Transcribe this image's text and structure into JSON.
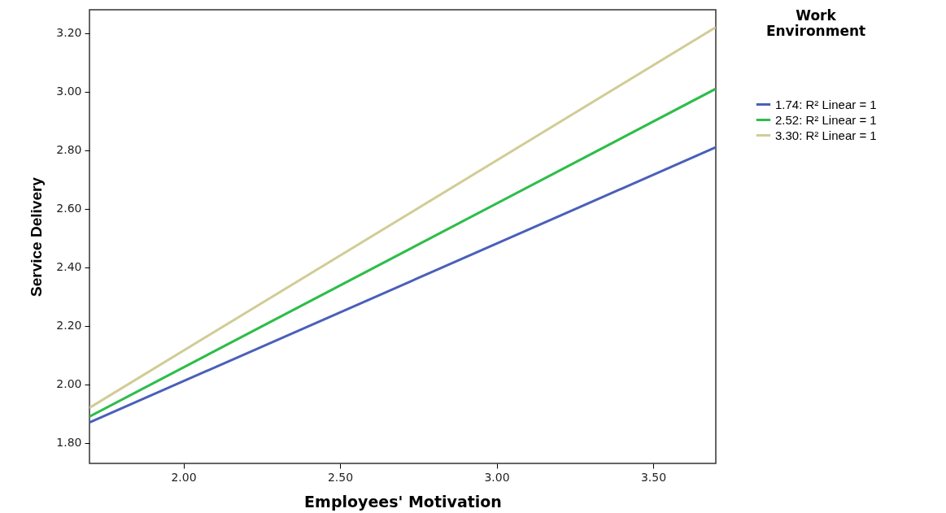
{
  "chart_data": {
    "type": "line",
    "xlabel": "Employees' Motivation",
    "ylabel": "Service Delivery",
    "legend_title": "Work Environment",
    "legend": "right",
    "grid": false,
    "xlim": [
      1.7,
      3.7
    ],
    "xticks": [
      {
        "value": 2,
        "label": "2.00"
      },
      {
        "value": 2.5,
        "label": "2.50"
      },
      {
        "value": 3,
        "label": "3.00"
      },
      {
        "value": 3.5,
        "label": "3.50"
      }
    ],
    "ylim": [
      1.73,
      3.28
    ],
    "yticks": [
      {
        "value": 1.8,
        "label": "1.80"
      },
      {
        "value": 2,
        "label": "2.00"
      },
      {
        "value": 2.2,
        "label": "2.20"
      },
      {
        "value": 2.4,
        "label": "2.40"
      },
      {
        "value": 2.6,
        "label": "2.60"
      },
      {
        "value": 2.8,
        "label": "2.80"
      },
      {
        "value": 3,
        "label": "3.00"
      },
      {
        "value": 3.2,
        "label": "3.20"
      }
    ],
    "x": [
      1.7,
      3.7
    ],
    "series": [
      {
        "name": "1.74: R² Linear = 1",
        "color": "#4a5fba",
        "values": [
          1.87,
          2.81
        ]
      },
      {
        "name": "2.52: R² Linear = 1",
        "color": "#2ebd4a",
        "values": [
          1.89,
          3.01
        ]
      },
      {
        "name": "3.30: R² Linear = 1",
        "color": "#d2cc96",
        "values": [
          1.92,
          3.22
        ]
      }
    ]
  }
}
